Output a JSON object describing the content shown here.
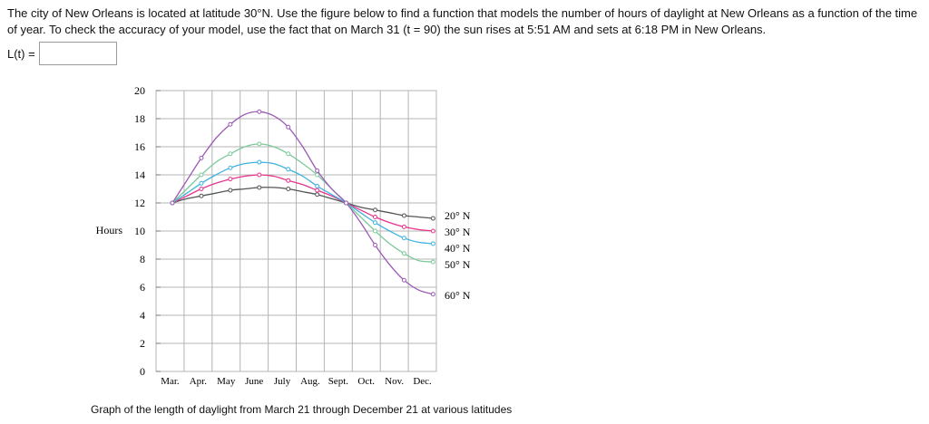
{
  "problem": {
    "text": "The city of New Orleans is located at latitude 30°N. Use the figure below to find a function that models the number of hours of daylight at New Orleans as a function of the time of year. To check the accuracy of your model, use the fact that on March 31 (t = 90) the sun rises at 5:51 AM and sets at 6:18 PM in New Orleans.",
    "answer_label": "L(t) =",
    "answer_value": ""
  },
  "caption": "Graph of the length of daylight from March 21 through December 21 at various latitudes",
  "colors": {
    "20": "#555555",
    "30": "#e8338c",
    "40": "#3fb2e0",
    "50": "#7cc99a",
    "60": "#9b59b6",
    "grid": "#b4b4b4"
  },
  "chart_data": {
    "type": "line",
    "title": "",
    "xlabel": "",
    "ylabel": "Hours",
    "ylim": [
      0,
      20
    ],
    "yticks": [
      0,
      2,
      4,
      6,
      8,
      10,
      12,
      14,
      16,
      18,
      20
    ],
    "categories": [
      "Mar.",
      "Apr.",
      "May",
      "June",
      "July",
      "Aug.",
      "Sept.",
      "Oct.",
      "Nov.",
      "Dec."
    ],
    "grid": true,
    "legend": "right",
    "x": [
      0,
      0.5,
      1,
      1.5,
      2,
      2.5,
      3,
      3.5,
      4,
      4.5,
      5,
      5.5,
      6,
      6.5,
      7,
      7.5,
      8,
      8.5,
      9
    ],
    "series": [
      {
        "name": "20° N",
        "key": "20",
        "values": [
          12,
          12.3,
          12.5,
          12.7,
          12.9,
          13.0,
          13.1,
          13.1,
          13.0,
          12.8,
          12.6,
          12.3,
          12.0,
          11.7,
          11.5,
          11.3,
          11.1,
          11.0,
          10.9
        ]
      },
      {
        "name": "30° N",
        "key": "30",
        "values": [
          12,
          12.5,
          13.0,
          13.4,
          13.7,
          13.9,
          14.0,
          13.9,
          13.6,
          13.3,
          12.9,
          12.5,
          12.0,
          11.5,
          11.0,
          10.6,
          10.3,
          10.1,
          10.0
        ]
      },
      {
        "name": "40° N",
        "key": "40",
        "values": [
          12,
          12.7,
          13.4,
          14.0,
          14.5,
          14.8,
          14.9,
          14.8,
          14.4,
          13.9,
          13.2,
          12.6,
          12.0,
          11.3,
          10.6,
          10.0,
          9.5,
          9.2,
          9.1
        ]
      },
      {
        "name": "50° N",
        "key": "50",
        "values": [
          12,
          13.0,
          14.0,
          14.9,
          15.5,
          16.0,
          16.2,
          16.0,
          15.5,
          14.8,
          14.0,
          13.0,
          12.0,
          11.0,
          10.0,
          9.1,
          8.4,
          7.9,
          7.8
        ]
      },
      {
        "name": "60° N",
        "key": "60",
        "values": [
          12,
          13.6,
          15.2,
          16.6,
          17.6,
          18.3,
          18.5,
          18.2,
          17.4,
          16.0,
          14.3,
          13.0,
          12.0,
          10.6,
          9.0,
          7.6,
          6.5,
          5.8,
          5.5
        ]
      }
    ]
  }
}
